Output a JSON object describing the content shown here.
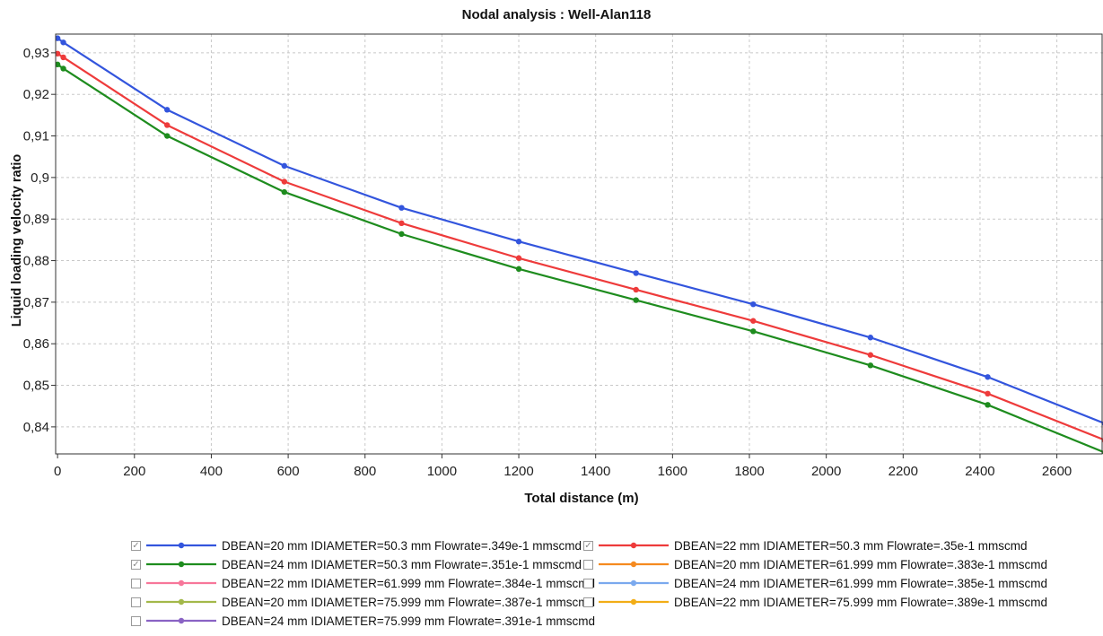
{
  "chart_data": {
    "type": "line",
    "title": "Nodal analysis : Well-Alan118",
    "xlabel": "Total distance (m)",
    "ylabel": "Liquid loading velocity ratio",
    "xlim": [
      -5,
      2720
    ],
    "ylim": [
      0.8335,
      0.9345
    ],
    "x_ticks": [
      0,
      200,
      400,
      600,
      800,
      1000,
      1200,
      1400,
      1600,
      1800,
      2000,
      2200,
      2400,
      2600
    ],
    "y_ticks": [
      0.84,
      0.85,
      0.86,
      0.87,
      0.88,
      0.89,
      0.9,
      0.91,
      0.92,
      0.93
    ],
    "y_tick_labels": [
      "0,84",
      "0,85",
      "0,86",
      "0,87",
      "0,88",
      "0,89",
      "0,9",
      "0,91",
      "0,92",
      "0,93"
    ],
    "grid": true,
    "legend_position": "bottom",
    "series": [
      {
        "name": "DBEAN=20 mm IDIAMETER=50.3 mm Flowrate=.349e-1 mmscmd",
        "color": "#3355dd",
        "checked": true,
        "x": [
          0,
          15,
          285,
          590,
          895,
          1200,
          1505,
          1810,
          2115,
          2420,
          2725
        ],
        "y": [
          0.9335,
          0.9325,
          0.9163,
          0.9028,
          0.8927,
          0.8846,
          0.877,
          0.8695,
          0.8615,
          0.852,
          0.8408
        ]
      },
      {
        "name": "DBEAN=22 mm IDIAMETER=50.3 mm Flowrate=.35e-1 mmscmd",
        "color": "#ee3b3b",
        "checked": true,
        "x": [
          0,
          15,
          285,
          590,
          895,
          1200,
          1505,
          1810,
          2115,
          2420,
          2725
        ],
        "y": [
          0.9298,
          0.9289,
          0.9126,
          0.899,
          0.889,
          0.8806,
          0.873,
          0.8655,
          0.8573,
          0.848,
          0.8368
        ]
      },
      {
        "name": "DBEAN=24 mm IDIAMETER=50.3 mm Flowrate=.351e-1 mmscmd",
        "color": "#1e8c1e",
        "checked": true,
        "x": [
          0,
          15,
          285,
          590,
          895,
          1200,
          1505,
          1810,
          2115,
          2420,
          2725
        ],
        "y": [
          0.9272,
          0.9262,
          0.91,
          0.8965,
          0.8864,
          0.878,
          0.8705,
          0.863,
          0.8548,
          0.8453,
          0.8338
        ]
      },
      {
        "name": "DBEAN=20 mm IDIAMETER=61.999 mm Flowrate=.383e-1 mmscmd",
        "color": "#f58a1f",
        "checked": false
      },
      {
        "name": "DBEAN=22 mm IDIAMETER=61.999 mm Flowrate=.384e-1 mmscmd",
        "color": "#f7779a",
        "checked": false
      },
      {
        "name": "DBEAN=24 mm IDIAMETER=61.999 mm Flowrate=.385e-1 mmscmd",
        "color": "#7aa9ee",
        "checked": false
      },
      {
        "name": "DBEAN=20 mm IDIAMETER=75.999 mm Flowrate=.387e-1 mmscmd",
        "color": "#a3b84a",
        "checked": false
      },
      {
        "name": "DBEAN=22 mm IDIAMETER=75.999 mm Flowrate=.389e-1 mmscmd",
        "color": "#f2ad16",
        "checked": false
      },
      {
        "name": "DBEAN=24 mm IDIAMETER=75.999 mm Flowrate=.391e-1 mmscmd",
        "color": "#8a63c4",
        "checked": false
      }
    ]
  }
}
